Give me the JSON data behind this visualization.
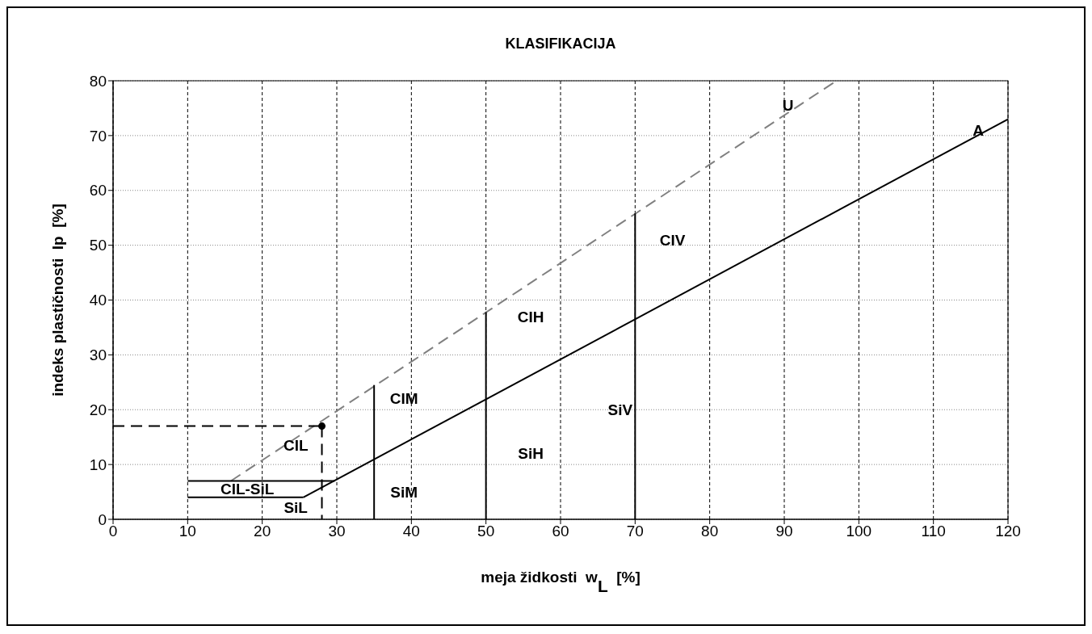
{
  "chart_data": {
    "type": "line",
    "title": "KLASIFIKACIJA",
    "xlabel": "meja židkosti  w$_{L}$ [%]",
    "ylabel": "indeks plastičnosti  Ip  [%]",
    "xlim": [
      0,
      120
    ],
    "ylim": [
      0,
      80
    ],
    "xticks": [
      0,
      10,
      20,
      30,
      40,
      50,
      60,
      70,
      80,
      90,
      100,
      110,
      120
    ],
    "yticks": [
      0,
      10,
      20,
      30,
      40,
      50,
      60,
      70,
      80
    ],
    "grid": true,
    "marker": "none",
    "series": [
      {
        "color": "#000000",
        "x": [
          25.5,
          120
        ],
        "values": [
          4,
          73
        ]
      },
      {
        "color": "#808080",
        "line_style": "dashed",
        "x": [
          15.8,
          97
        ],
        "values": [
          7,
          80
        ]
      },
      {
        "color": "#000000",
        "x": [
          10,
          29.7
        ],
        "values": [
          7,
          7
        ]
      },
      {
        "color": "#000000",
        "x": [
          10,
          25.5
        ],
        "values": [
          4,
          4
        ]
      },
      {
        "color": "#000000",
        "x": [
          35,
          35
        ],
        "values": [
          0,
          24.5
        ]
      },
      {
        "color": "#000000",
        "x": [
          50,
          50
        ],
        "values": [
          0,
          37.8
        ]
      },
      {
        "color": "#000000",
        "x": [
          70,
          70
        ],
        "values": [
          0,
          55.8
        ]
      },
      {
        "color": "#000000",
        "line_style": "dashed",
        "x": [
          0,
          28
        ],
        "values": [
          17,
          17
        ]
      },
      {
        "color": "#000000",
        "line_style": "dashed",
        "x": [
          28,
          28
        ],
        "values": [
          17,
          0
        ]
      },
      {
        "type": "scatter",
        "color": "#000000",
        "marker": "circle",
        "x": [
          28
        ],
        "values": [
          17
        ]
      }
    ],
    "annotations": [
      "U",
      "A",
      "CIV",
      "CIH",
      "CIM",
      "SiV",
      "SiH",
      "SiM",
      "CIL",
      "CIL-SiL",
      "SiL"
    ]
  }
}
